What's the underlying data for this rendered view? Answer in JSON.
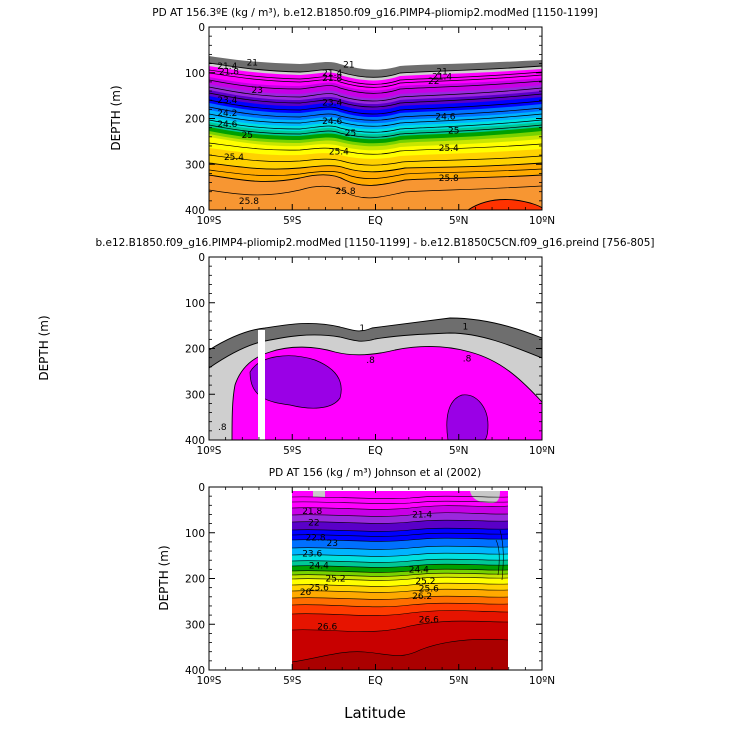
{
  "figure": {
    "xlabel": "Latitude",
    "ylabel_top": "DEPTH (m)",
    "ylabel_mid": "DEPTH  (m)",
    "ylabel_bot": "DEPTH (m)"
  },
  "chart_data": [
    {
      "type": "heatmap",
      "subtype": "contour-section",
      "title": "PD AT 156.3ºE (kg / m³), b.e12.B1850.f09_g16.PIMP4-pliomip2.modMed [1150-1199]",
      "xlabel": "",
      "ylabel": "DEPTH (m)",
      "xlim": [
        -10,
        10
      ],
      "ylim": [
        400,
        0
      ],
      "x_ticks": [
        "10ºS",
        "5ºS",
        "EQ",
        "5ºN",
        "10ºN"
      ],
      "y_ticks": [
        "0",
        "100",
        "200",
        "300",
        "400"
      ],
      "contour_interval": 0.2,
      "level_range": [
        21,
        26.0
      ],
      "iso_depth": [
        {
          "value": 21.0,
          "depths": [
            63,
            76,
            88,
            84,
            76,
            68
          ]
        },
        {
          "value": 24.6,
          "depths": [
            172,
            188,
            195,
            180,
            178,
            172
          ]
        },
        {
          "value": 25.0,
          "depths": [
            215,
            232,
            232,
            220,
            228,
            222
          ]
        },
        {
          "value": 25.4,
          "depths": [
            280,
            250,
            292,
            268,
            256,
            258
          ]
        },
        {
          "value": 25.8,
          "depths": [
            382,
            355,
            402,
            370,
            330,
            322
          ]
        }
      ],
      "contour_labels": [
        {
          "text": "21",
          "x": -7.4,
          "y": 78
        },
        {
          "text": "21.4",
          "x": -8.9,
          "y": 85
        },
        {
          "text": "21.8",
          "x": -8.8,
          "y": 97
        },
        {
          "text": "21",
          "x": -1.6,
          "y": 82
        },
        {
          "text": "21.4",
          "x": -2.6,
          "y": 100
        },
        {
          "text": "21.8",
          "x": -2.6,
          "y": 112
        },
        {
          "text": "21",
          "x": 4.0,
          "y": 97
        },
        {
          "text": "21.4",
          "x": 4.0,
          "y": 108
        },
        {
          "text": "22",
          "x": 3.5,
          "y": 118
        },
        {
          "text": "23",
          "x": -7.1,
          "y": 138
        },
        {
          "text": "23.4",
          "x": -8.9,
          "y": 160
        },
        {
          "text": "24.2",
          "x": -8.9,
          "y": 188
        },
        {
          "text": "24.6",
          "x": -8.9,
          "y": 212
        },
        {
          "text": "23.4",
          "x": -2.6,
          "y": 165
        },
        {
          "text": "24.6",
          "x": -2.6,
          "y": 205
        },
        {
          "text": "24.6",
          "x": 4.2,
          "y": 196
        },
        {
          "text": "25",
          "x": -7.7,
          "y": 236
        },
        {
          "text": "25",
          "x": -1.5,
          "y": 232
        },
        {
          "text": "25",
          "x": 4.7,
          "y": 226
        },
        {
          "text": "25.4",
          "x": -8.5,
          "y": 284
        },
        {
          "text": "25.4",
          "x": -2.2,
          "y": 272
        },
        {
          "text": "25.4",
          "x": 4.4,
          "y": 264
        },
        {
          "text": "25.8",
          "x": -7.6,
          "y": 380
        },
        {
          "text": "25.8",
          "x": -1.8,
          "y": 358
        },
        {
          "text": "25.8",
          "x": 4.4,
          "y": 330
        }
      ]
    },
    {
      "type": "heatmap",
      "subtype": "contour-section",
      "title": "b.e12.B1850.f09_g16.PIMP4-pliomip2.modMed [1150-1199] - b.e12.B1850C5CN.f09_g16.preind [756-805]",
      "xlabel": "",
      "ylabel": "DEPTH  (m)",
      "xlim": [
        -10,
        10
      ],
      "ylim": [
        400,
        0
      ],
      "x_ticks": [
        "10ºS",
        "5ºS",
        "EQ",
        "5ºN",
        "10ºN"
      ],
      "y_ticks": [
        "0",
        "100",
        "200",
        "300",
        "400"
      ],
      "contour_labels": [
        {
          "text": "1",
          "x": -0.8,
          "y": 155
        },
        {
          "text": "1",
          "x": 5.4,
          "y": 152
        },
        {
          "text": ".8",
          "x": -0.3,
          "y": 225
        },
        {
          "text": ".8",
          "x": 5.5,
          "y": 222
        },
        {
          "text": ".8",
          "x": -9.2,
          "y": 372
        }
      ]
    },
    {
      "type": "heatmap",
      "subtype": "contour-section",
      "title": "PD AT 156 (kg / m³) Johnson et al (2002)",
      "xlabel": "Latitude",
      "ylabel": "DEPTH (m)",
      "xlim": [
        -10,
        10
      ],
      "ylim": [
        400,
        0
      ],
      "data_xrange": [
        -5,
        8
      ],
      "x_ticks": [
        "10ºS",
        "5ºS",
        "EQ",
        "5ºN",
        "10ºN"
      ],
      "y_ticks": [
        "0",
        "100",
        "200",
        "300",
        "400"
      ],
      "contour_labels": [
        {
          "text": "21.8",
          "x": -3.8,
          "y": 52
        },
        {
          "text": "21.4",
          "x": 2.8,
          "y": 60
        },
        {
          "text": "22",
          "x": -3.7,
          "y": 78
        },
        {
          "text": "22.8",
          "x": -3.6,
          "y": 110
        },
        {
          "text": "23",
          "x": -2.6,
          "y": 122
        },
        {
          "text": "23.6",
          "x": -3.8,
          "y": 145
        },
        {
          "text": "24.4",
          "x": -3.4,
          "y": 172
        },
        {
          "text": "24.4",
          "x": 2.6,
          "y": 180
        },
        {
          "text": "25.2",
          "x": -2.4,
          "y": 200
        },
        {
          "text": "25.2",
          "x": 3.0,
          "y": 205
        },
        {
          "text": "25.6",
          "x": -3.4,
          "y": 220
        },
        {
          "text": "25.6",
          "x": 3.2,
          "y": 222
        },
        {
          "text": "26",
          "x": -4.2,
          "y": 230
        },
        {
          "text": "26.2",
          "x": 2.8,
          "y": 238
        },
        {
          "text": "26.6",
          "x": -2.9,
          "y": 305
        },
        {
          "text": "26.6",
          "x": 3.2,
          "y": 290
        }
      ]
    }
  ]
}
